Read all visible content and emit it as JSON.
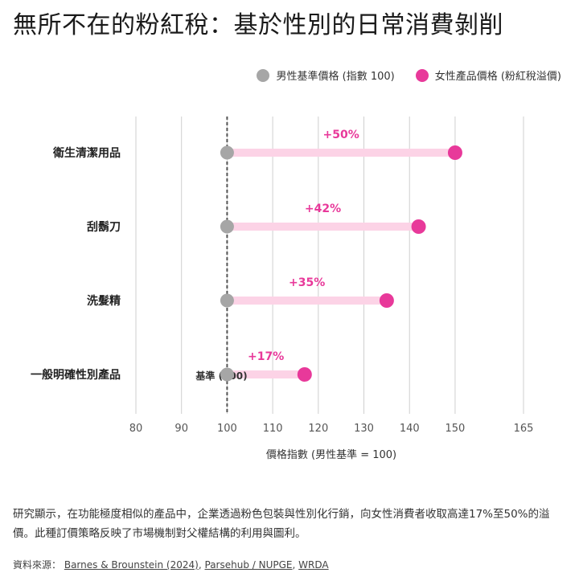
{
  "title": "無所不在的粉紅稅：基於性別的日常消費剝削",
  "legend": [
    {
      "label": "男性基準價格 (指數 100)",
      "color": "#a6a6a6"
    },
    {
      "label": "女性產品價格 (粉紅稅溢價)",
      "color": "#e8399a"
    }
  ],
  "chart_data": {
    "type": "dumbbell",
    "categories": [
      "衛生清潔用品",
      "刮鬍刀",
      "洗髮精",
      "一般明確性別產品"
    ],
    "series": [
      {
        "name": "男性基準價格 (指數 100)",
        "values": [
          100,
          100,
          100,
          100
        ]
      },
      {
        "name": "女性產品價格 (粉紅稅溢價)",
        "values": [
          150,
          142,
          135,
          117
        ]
      }
    ],
    "labels": [
      "+50%",
      "+42%",
      "+35%",
      "+17%"
    ],
    "annotation": "基準 (100)",
    "xlabel": "價格指數 (男性基準 = 100)",
    "xticks": [
      80,
      90,
      100,
      110,
      120,
      130,
      140,
      150,
      165
    ],
    "xlim": [
      80,
      165
    ],
    "reference_line": 100,
    "colors": {
      "base": "#a6a6a6",
      "premium": "#e8399a",
      "bar": "#fcd3e6",
      "grid": "#cfcfcf",
      "ref": "#555555"
    }
  },
  "description": "研究顯示，在功能極度相似的產品中，企業透過粉色包裝與性別化行銷，向女性消費者收取高達17%至50%的溢價。此種訂價策略反映了市場機制對父權結構的利用與圖利。",
  "source": {
    "prefix": "資料來源：",
    "links": [
      "Barnes & Brounstein (2024)",
      "Parsehub / NUPGE",
      "WRDA"
    ],
    "separator": ","
  }
}
